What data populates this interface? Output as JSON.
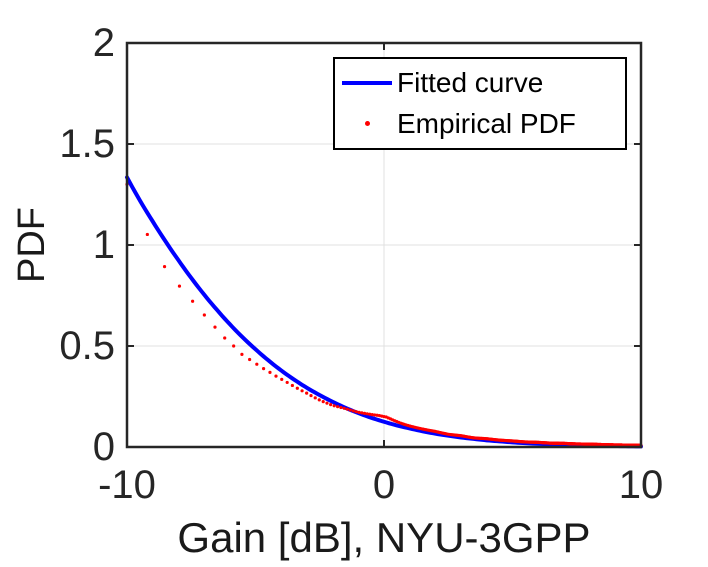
{
  "chart_data": {
    "type": "line",
    "title": "",
    "xlabel": "Gain [dB], NYU-3GPP",
    "ylabel": "PDF",
    "xlim": [
      -10,
      10
    ],
    "ylim": [
      0,
      2
    ],
    "xticks": {
      "values": [
        -10,
        0,
        10
      ],
      "labels": [
        "-10",
        "0",
        "10"
      ]
    },
    "yticks": {
      "values": [
        0,
        0.5,
        1,
        1.5,
        2
      ],
      "labels": [
        "0",
        "0.5",
        "1",
        "1.5",
        "2"
      ]
    },
    "grid": true,
    "legend_position": "northeast",
    "colors": {
      "axis": "#262626",
      "grid": "#e0e0e0",
      "fitted_curve": "#0000ff",
      "empirical_pdf": "#ff0000",
      "text": "#1a1a1a"
    },
    "series": [
      {
        "name": "Fitted curve",
        "type": "line",
        "color": "#0000ff",
        "line_width": 4,
        "points": [
          [
            -10,
            1.335
          ],
          [
            -9.5,
            1.221
          ],
          [
            -9,
            1.117
          ],
          [
            -8.5,
            1.018
          ],
          [
            -8,
            0.925
          ],
          [
            -7.5,
            0.837
          ],
          [
            -7,
            0.755
          ],
          [
            -6.5,
            0.679
          ],
          [
            -6,
            0.608
          ],
          [
            -5.5,
            0.543
          ],
          [
            -5,
            0.484
          ],
          [
            -4.5,
            0.429
          ],
          [
            -4,
            0.379
          ],
          [
            -3.5,
            0.334
          ],
          [
            -3,
            0.293
          ],
          [
            -2.5,
            0.257
          ],
          [
            -2,
            0.224
          ],
          [
            -1.5,
            0.194
          ],
          [
            -1,
            0.168
          ],
          [
            -0.5,
            0.145
          ],
          [
            0,
            0.125
          ],
          [
            0.5,
            0.107
          ],
          [
            1,
            0.092
          ],
          [
            1.5,
            0.078
          ],
          [
            2,
            0.066
          ],
          [
            2.5,
            0.056
          ],
          [
            3,
            0.047
          ],
          [
            3.5,
            0.04
          ],
          [
            4,
            0.033
          ],
          [
            4.5,
            0.028
          ],
          [
            5,
            0.023
          ],
          [
            5.5,
            0.019
          ],
          [
            6,
            0.016
          ],
          [
            6.5,
            0.013
          ],
          [
            7,
            0.011
          ],
          [
            7.5,
            0.009
          ],
          [
            8,
            0.007
          ],
          [
            8.5,
            0.006
          ],
          [
            9,
            0.005
          ],
          [
            9.5,
            0.004
          ],
          [
            10,
            0.003
          ]
        ]
      },
      {
        "name": "Empirical PDF",
        "type": "scatter",
        "color": "#ff0000",
        "marker": "dot",
        "marker_radius": 1.6,
        "x_sampling": {
          "note": "markers uniform in linear gain, x = 10*log10(g)",
          "g_min": 0.1,
          "g_max": 10,
          "g_step": 0.02
        },
        "anchors": [
          [
            -10,
            1.3
          ],
          [
            -9.2,
            1.05
          ],
          [
            -8.55,
            0.895
          ],
          [
            -7.95,
            0.795
          ],
          [
            -7.4,
            0.715
          ],
          [
            -7.0,
            0.655
          ],
          [
            -6.55,
            0.59
          ],
          [
            -6.2,
            0.54
          ],
          [
            -5.85,
            0.5
          ],
          [
            -5.6,
            0.465
          ],
          [
            -5.25,
            0.435
          ],
          [
            -4.95,
            0.41
          ],
          [
            -4.65,
            0.385
          ],
          [
            -4.35,
            0.363
          ],
          [
            -4.1,
            0.343
          ],
          [
            -3.85,
            0.326
          ],
          [
            -3.5,
            0.3
          ],
          [
            -3.0,
            0.266
          ],
          [
            -2.5,
            0.232
          ],
          [
            -2.0,
            0.206
          ],
          [
            -1.5,
            0.19
          ],
          [
            -1.0,
            0.172
          ],
          [
            -0.5,
            0.161
          ],
          [
            -0.2,
            0.156
          ],
          [
            0.1,
            0.148
          ],
          [
            0.4,
            0.131
          ],
          [
            0.7,
            0.116
          ],
          [
            1.0,
            0.104
          ],
          [
            1.5,
            0.089
          ],
          [
            2.0,
            0.077
          ],
          [
            2.5,
            0.063
          ],
          [
            3.0,
            0.056
          ],
          [
            3.5,
            0.045
          ],
          [
            4.0,
            0.041
          ],
          [
            4.5,
            0.034
          ],
          [
            5.0,
            0.03
          ],
          [
            5.5,
            0.025
          ],
          [
            6.0,
            0.023
          ],
          [
            6.5,
            0.019
          ],
          [
            7.0,
            0.018
          ],
          [
            7.5,
            0.015
          ],
          [
            8.0,
            0.014
          ],
          [
            8.5,
            0.012
          ],
          [
            9.0,
            0.01
          ],
          [
            9.5,
            0.0095
          ],
          [
            10,
            0.008
          ]
        ]
      }
    ]
  }
}
